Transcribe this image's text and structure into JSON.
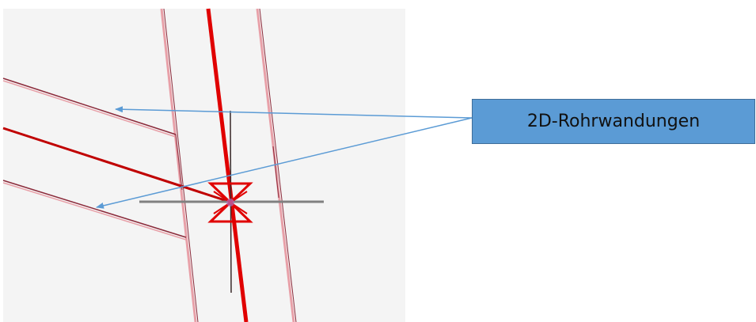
{
  "callout": {
    "label": "2D-Rohrwandungen"
  },
  "colors": {
    "background": "#ffffff",
    "cad_background": "#f4f4f4",
    "pipe_center": "#e00000",
    "pipe_wall": "#8b2a3a",
    "pipe_edge_light": "#e8a0a8",
    "axis_line": "#808080",
    "callout_fill": "#5b9bd5",
    "callout_border": "#3f6d99",
    "arrow": "#5b9bd5"
  },
  "icons": {
    "valve_symbol": "valve-icon"
  }
}
